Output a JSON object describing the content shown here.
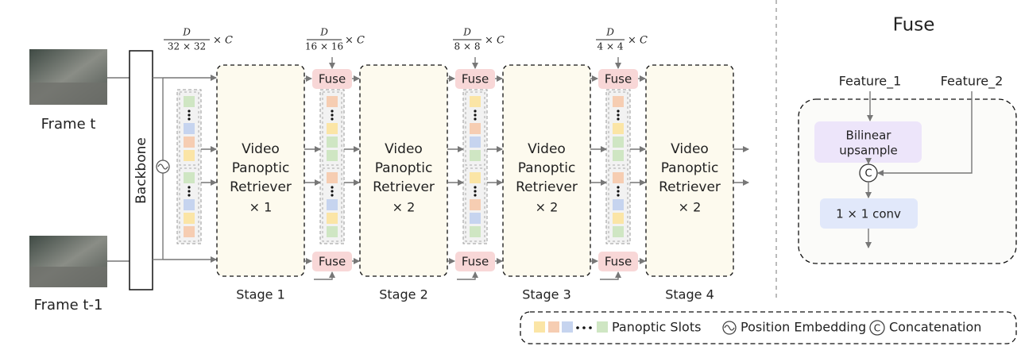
{
  "frames": [
    {
      "label": "Frame t"
    },
    {
      "label": "Frame t-1"
    }
  ],
  "backbone": "Backbone",
  "scales": [
    {
      "numerator": "D",
      "denominator": "32 × 32",
      "suffix": "× C"
    },
    {
      "numerator": "D",
      "denominator": "16 × 16",
      "suffix": "× C"
    },
    {
      "numerator": "D",
      "denominator": "8 × 8",
      "suffix": "× C"
    },
    {
      "numerator": "D",
      "denominator": "4 × 4",
      "suffix": "× C"
    }
  ],
  "stages": [
    {
      "block": [
        "Video",
        "Panoptic",
        "Retriever"
      ],
      "repeat": "× 1",
      "label": "Stage 1"
    },
    {
      "block": [
        "Video",
        "Panoptic",
        "Retriever"
      ],
      "repeat": "× 2",
      "label": "Stage 2"
    },
    {
      "block": [
        "Video",
        "Panoptic",
        "Retriever"
      ],
      "repeat": "× 2",
      "label": "Stage 3"
    },
    {
      "block": [
        "Video",
        "Panoptic",
        "Retriever"
      ],
      "repeat": "× 2",
      "label": "Stage 4"
    }
  ],
  "fuse_blocks": [
    "Fuse",
    "Fuse",
    "Fuse",
    "Fuse",
    "Fuse",
    "Fuse"
  ],
  "fuse_panel": {
    "title": "Fuse",
    "inputs": [
      "Feature_1",
      "Feature_2"
    ],
    "upsample": [
      "Bilinear",
      "upsample"
    ],
    "concat": "C",
    "conv": "1 × 1 conv"
  },
  "legend": {
    "slots": "Panoptic Slots",
    "position": "Position Embedding",
    "concat_symbol": "C",
    "concat": "Concatenation"
  }
}
